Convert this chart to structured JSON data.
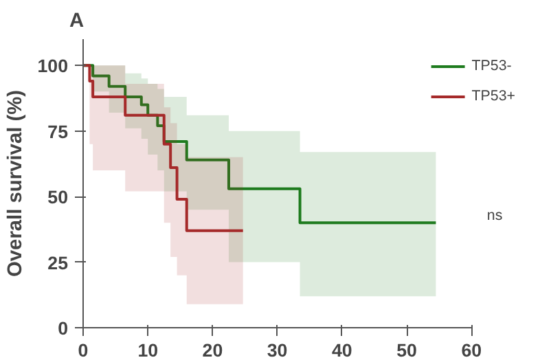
{
  "chart_data": {
    "type": "step",
    "title": "A",
    "ylabel": "Overall survival (%)",
    "xlim": [
      0,
      60
    ],
    "xticks": [
      0,
      10,
      20,
      30,
      40,
      50,
      60
    ],
    "ylim": [
      0,
      110
    ],
    "yticks": [
      0,
      25,
      50,
      75,
      100
    ],
    "grid": false,
    "legend": "top right",
    "annotations": [
      "ns"
    ],
    "series": [
      {
        "name": "TP53-",
        "color": "#1e7b1e",
        "x": [
          0,
          1.5,
          4,
          6.5,
          9,
          10,
          11.5,
          12.5,
          16,
          22.5,
          33.5,
          54.5
        ],
        "values": [
          100,
          96,
          92,
          88,
          85,
          81,
          77,
          71,
          64,
          53,
          40,
          40
        ],
        "lower": [
          100,
          90,
          82,
          76,
          72,
          66,
          60,
          52,
          45,
          25,
          12,
          12
        ],
        "upper": [
          100,
          100,
          100,
          97,
          95,
          93,
          91,
          88,
          81,
          75,
          67,
          67
        ]
      },
      {
        "name": "TP53+",
        "color": "#a52a2a",
        "x": [
          0,
          1,
          1.5,
          6.5,
          12.5,
          13.5,
          14.5,
          16,
          24.7
        ],
        "values": [
          100,
          94,
          88,
          81,
          70,
          61,
          49,
          37,
          37
        ],
        "lower": [
          100,
          70,
          60,
          52,
          40,
          27,
          20,
          9,
          9
        ],
        "upper": [
          100,
          100,
          100,
          93,
          84,
          78,
          70,
          65,
          65
        ]
      }
    ]
  }
}
